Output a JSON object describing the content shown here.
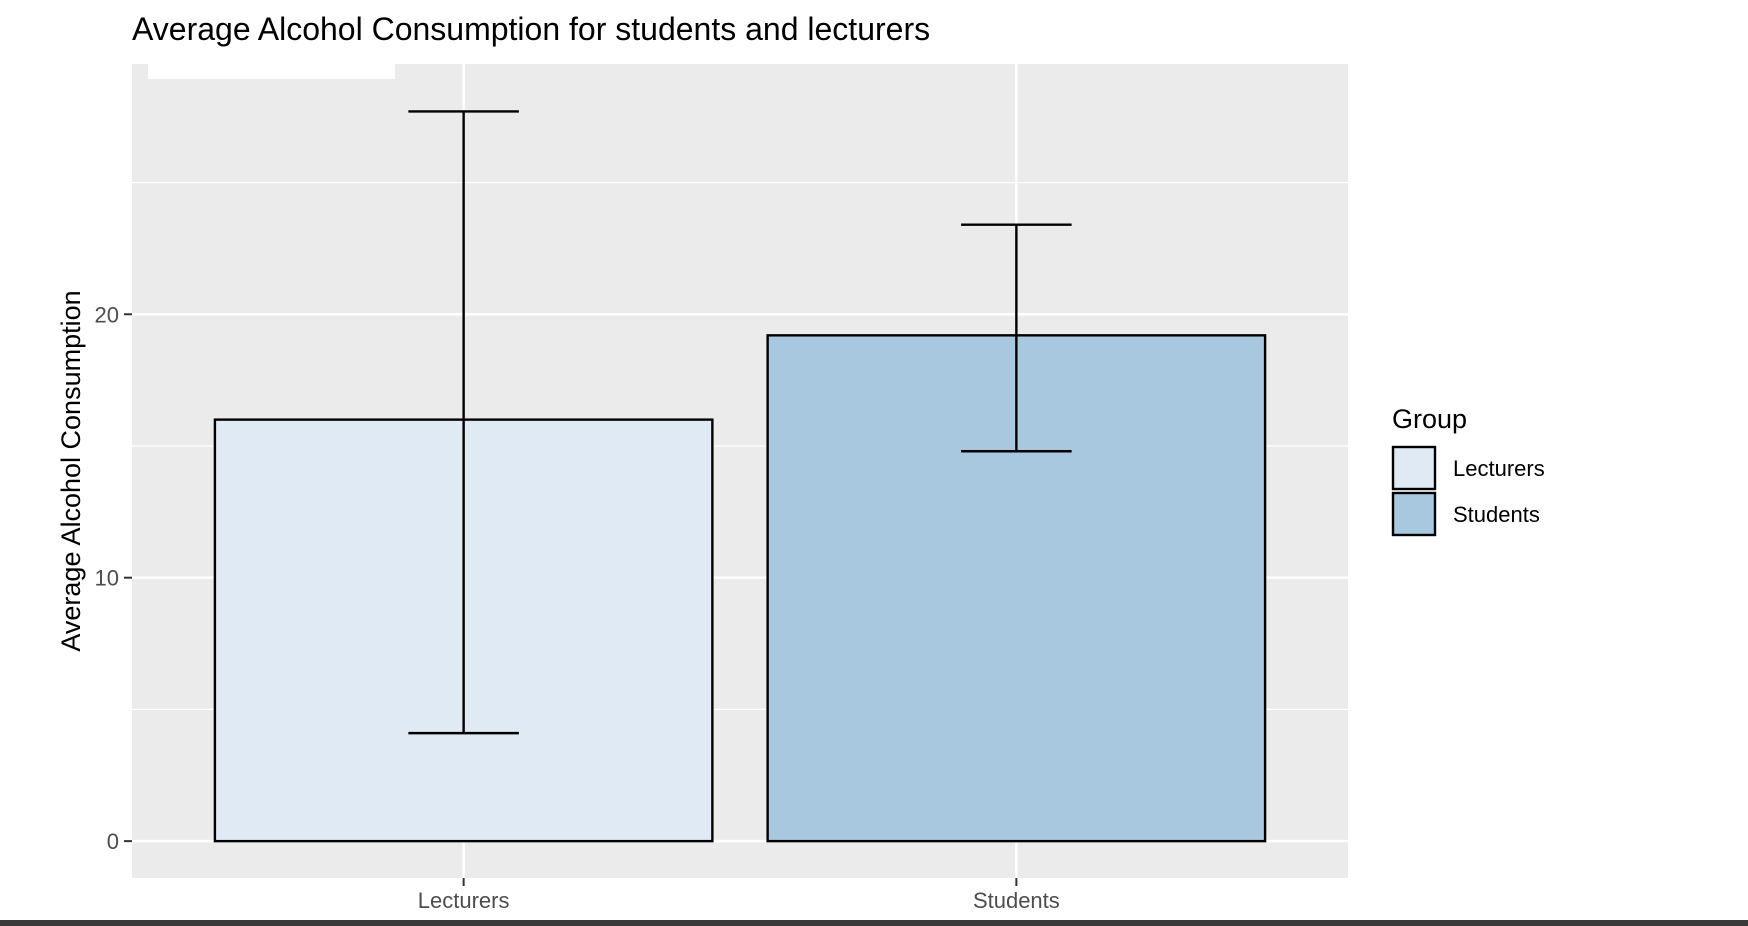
{
  "chart_data": {
    "type": "bar",
    "title": "Average Alcohol Consumption for students and lecturers",
    "xlabel": "",
    "ylabel": "Average Alcohol Consumption",
    "categories": [
      "Lecturers",
      "Students"
    ],
    "values": [
      16.0,
      19.2
    ],
    "error_bars": [
      {
        "low": 4.1,
        "high": 27.7
      },
      {
        "low": 14.8,
        "high": 23.4
      }
    ],
    "colors": [
      "#e0eaf4",
      "#a7c8df"
    ],
    "ylim": [
      -1.4,
      29.5
    ],
    "yticks": [
      0,
      10,
      20
    ],
    "grid": true,
    "legend": {
      "title": "Group",
      "entries": [
        "Lecturers",
        "Students"
      ],
      "position": "right"
    }
  }
}
